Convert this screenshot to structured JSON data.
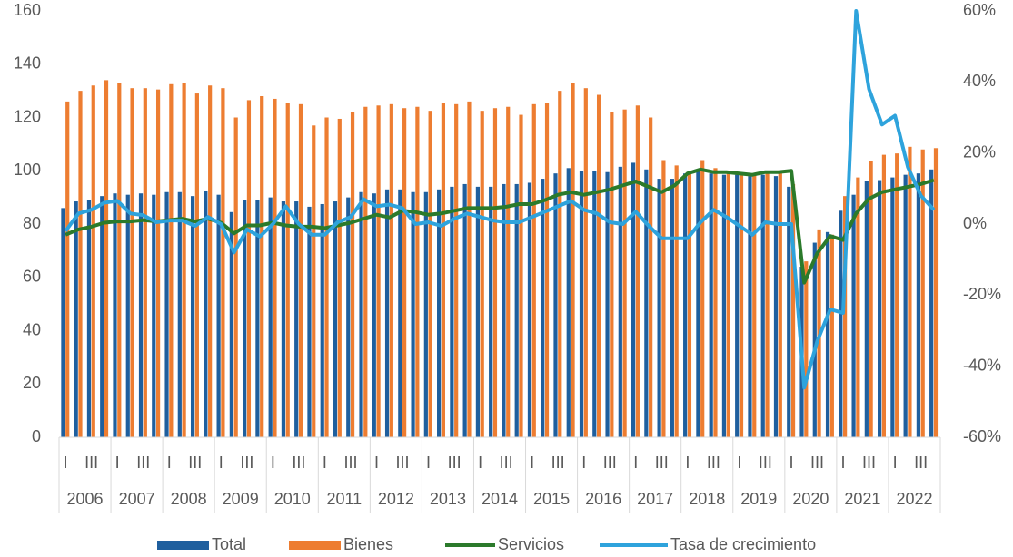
{
  "chart_data": {
    "type": "bar",
    "categories": [
      "I",
      null,
      "III",
      null,
      "I",
      null,
      "III",
      null,
      "I",
      null,
      "III",
      null,
      "I",
      null,
      "III",
      null,
      "I",
      null,
      "III",
      null,
      "I",
      null,
      "III",
      null,
      "I",
      null,
      "III",
      null,
      "I",
      null,
      "III",
      null,
      "I",
      null,
      "III",
      null,
      "I",
      null,
      "III",
      null,
      "I",
      null,
      "III",
      null,
      "I",
      null,
      "III",
      null,
      "I",
      null,
      "III",
      null,
      "I",
      null,
      "III",
      null,
      "I",
      null,
      "III",
      null,
      "I",
      null,
      "III",
      null,
      "I",
      null,
      "III",
      null
    ],
    "groups": [
      "2006",
      "2007",
      "2008",
      "2009",
      "2010",
      "2011",
      "2012",
      "2013",
      "2014",
      "2015",
      "2016",
      "2017",
      "2018",
      "2019",
      "2020",
      "2021",
      "2022"
    ],
    "series": [
      {
        "name": "Total",
        "type": "bar",
        "color": "#1f5f9e",
        "values": [
          86,
          88.5,
          89,
          90.5,
          91.5,
          91,
          91.5,
          91,
          92,
          92,
          90.5,
          92.5,
          91,
          84.5,
          89,
          89,
          90,
          88.5,
          88.5,
          86.5,
          87.5,
          88.5,
          90,
          92,
          91.5,
          93,
          93,
          92,
          92,
          93,
          94,
          95,
          94,
          94,
          95,
          95,
          95.5,
          97,
          99,
          101,
          100,
          100,
          99.5,
          101.5,
          103,
          100.5,
          97,
          97,
          99,
          100,
          99,
          98.5,
          98.5,
          98,
          98.5,
          98,
          94,
          64,
          73,
          77,
          85,
          91,
          96,
          96.5,
          97.5,
          98.5,
          99,
          100.5
        ]
      },
      {
        "name": "Bienes",
        "type": "bar",
        "color": "#ed7d31",
        "values": [
          126,
          130,
          132,
          134,
          133,
          131,
          131,
          130.5,
          132.5,
          133,
          129,
          132,
          131,
          120,
          126.5,
          128,
          127,
          125.5,
          125,
          117,
          120,
          119.5,
          122,
          124,
          124.5,
          125,
          123.5,
          124,
          122.5,
          125.5,
          125,
          126,
          122.5,
          123.5,
          124,
          121,
          125,
          125.5,
          130,
          133,
          131,
          128.5,
          122,
          123,
          124.5,
          120,
          104,
          102,
          99,
          104,
          101,
          99,
          99,
          98.5,
          99,
          99.5,
          95,
          66,
          78,
          76,
          90.5,
          97.5,
          103.5,
          106,
          106.5,
          109,
          108,
          108.5
        ]
      },
      {
        "name": "Servicios",
        "type": "line",
        "color": "#2b7a2b",
        "values": [
          76,
          78,
          79,
          80.5,
          81,
          81,
          81.5,
          81,
          81.5,
          82,
          81,
          82,
          80.5,
          76.5,
          79.5,
          79.5,
          80.5,
          79.5,
          79,
          79,
          78.5,
          79.5,
          80.5,
          82,
          83.5,
          82.5,
          85,
          84.5,
          83.5,
          84,
          85,
          86,
          86,
          86,
          86.5,
          87.5,
          87.5,
          89,
          91,
          92,
          91,
          92,
          93,
          94.5,
          96,
          94,
          92,
          94.5,
          99,
          100.5,
          99.5,
          99.5,
          99,
          98.5,
          99.5,
          99.5,
          100,
          58,
          69,
          75.5,
          74,
          84,
          89.5,
          92,
          93,
          94,
          95,
          96.5
        ]
      },
      {
        "name": "Tasa de crecimiento",
        "type": "line",
        "axis": "y2",
        "color": "#2ea3dc",
        "values": [
          -2,
          3,
          4,
          6,
          6.5,
          3,
          2.5,
          0.5,
          1,
          1,
          -0.5,
          2,
          0,
          -8,
          -1.5,
          -3.5,
          0,
          5,
          0,
          -3,
          -3,
          0.5,
          2,
          7,
          5,
          5.5,
          4.5,
          0,
          0.5,
          -0.5,
          1.5,
          3,
          2,
          1,
          0.5,
          0.5,
          2,
          3.5,
          5,
          6.5,
          4,
          3,
          0.5,
          0,
          3.5,
          -0.5,
          -4,
          -4,
          -4,
          0.5,
          4,
          2,
          -0.5,
          -3,
          0.5,
          0,
          0,
          -46,
          -33,
          -24,
          -25,
          60,
          38,
          28,
          30.5,
          16,
          8,
          4
        ]
      }
    ],
    "ylim": [
      0,
      160
    ],
    "yticks": [
      0,
      20,
      40,
      60,
      80,
      100,
      120,
      140,
      160
    ],
    "y2lim": [
      -60,
      60
    ],
    "y2ticks": [
      {
        "value": -60,
        "label": "-60%"
      },
      {
        "value": -40,
        "label": "-40%"
      },
      {
        "value": -20,
        "label": "-20%"
      },
      {
        "value": 0,
        "label": "0%"
      },
      {
        "value": 20,
        "label": "20%"
      },
      {
        "value": 40,
        "label": "40%"
      },
      {
        "value": 60,
        "label": "60%"
      }
    ],
    "grid": false,
    "legend": "bottom"
  }
}
